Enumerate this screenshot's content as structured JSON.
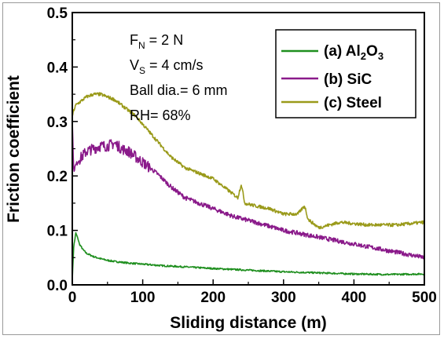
{
  "chart_data": {
    "type": "line",
    "xlabel": "Sliding distance (m)",
    "ylabel": "Friction coefficient",
    "xlim": [
      0,
      500
    ],
    "ylim": [
      0.0,
      0.5
    ],
    "xticks": [
      "0",
      "100",
      "200",
      "300",
      "400",
      "500"
    ],
    "yticks": [
      "0.0",
      "0.1",
      "0.2",
      "0.3",
      "0.4",
      "0.5"
    ],
    "grid": false,
    "legend_position": "top-right",
    "annotations": {
      "fn_label": "F",
      "fn_sub": "N",
      "fn_value": " = 2 N",
      "vs_label": "V",
      "vs_sub": "S",
      "vs_value": " = 4 cm/s",
      "ball": "Ball dia.= 6 mm",
      "rh": "RH= 68%"
    },
    "series": [
      {
        "name": "(a) Al2O3",
        "legend": {
          "prefix": "(a) Al",
          "sub1": "2",
          "mid": "O",
          "sub2": "3"
        },
        "color": "#1f8f1f",
        "x": [
          0,
          2,
          5,
          8,
          10,
          15,
          20,
          30,
          40,
          50,
          60,
          80,
          100,
          130,
          160,
          200,
          250,
          300,
          350,
          400,
          450,
          500
        ],
        "y": [
          0.01,
          0.07,
          0.095,
          0.085,
          0.075,
          0.065,
          0.058,
          0.052,
          0.048,
          0.045,
          0.043,
          0.04,
          0.038,
          0.035,
          0.033,
          0.03,
          0.027,
          0.024,
          0.022,
          0.02,
          0.019,
          0.02
        ]
      },
      {
        "name": "(b) SiC",
        "color": "#8a1a8a",
        "x": [
          0,
          2,
          5,
          10,
          20,
          30,
          40,
          50,
          60,
          70,
          80,
          90,
          100,
          120,
          140,
          160,
          180,
          200,
          230,
          260,
          300,
          340,
          380,
          420,
          460,
          500
        ],
        "y": [
          0.3,
          0.21,
          0.22,
          0.23,
          0.245,
          0.25,
          0.255,
          0.255,
          0.26,
          0.25,
          0.245,
          0.235,
          0.225,
          0.205,
          0.18,
          0.16,
          0.15,
          0.14,
          0.125,
          0.115,
          0.1,
          0.09,
          0.08,
          0.07,
          0.06,
          0.05
        ]
      },
      {
        "name": "(c) Steel",
        "color": "#9a9a1a",
        "x": [
          0,
          2,
          5,
          10,
          20,
          30,
          40,
          50,
          60,
          70,
          80,
          90,
          100,
          120,
          140,
          160,
          180,
          200,
          220,
          235,
          240,
          245,
          260,
          280,
          300,
          320,
          330,
          335,
          350,
          380,
          420,
          460,
          500
        ],
        "y": [
          0.31,
          0.32,
          0.33,
          0.335,
          0.345,
          0.35,
          0.35,
          0.345,
          0.34,
          0.33,
          0.32,
          0.31,
          0.295,
          0.265,
          0.235,
          0.215,
          0.205,
          0.195,
          0.175,
          0.16,
          0.185,
          0.15,
          0.145,
          0.14,
          0.13,
          0.13,
          0.145,
          0.12,
          0.105,
          0.115,
          0.11,
          0.11,
          0.115
        ]
      }
    ]
  }
}
